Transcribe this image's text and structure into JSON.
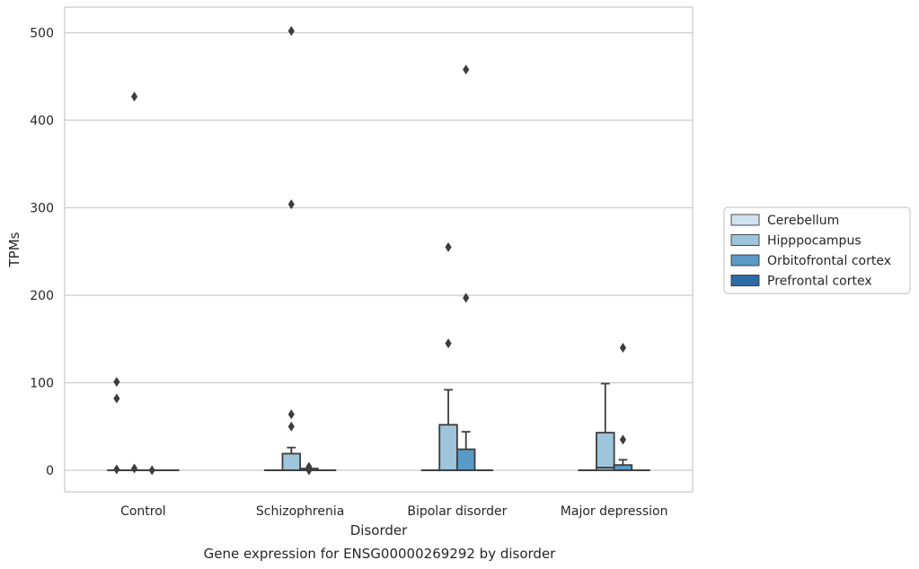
{
  "chart_data": {
    "type": "box",
    "title": "Gene expression for ENSG00000269292 by disorder",
    "xlabel": "Disorder",
    "ylabel": "TPMs",
    "ylim": [
      -25,
      528
    ],
    "yticks": [
      0,
      100,
      200,
      300,
      400,
      500
    ],
    "grid": "horizontal",
    "legend_position": "right",
    "categories": [
      "Control",
      "Schizophrenia",
      "Bipolar disorder",
      "Major depression"
    ],
    "series": [
      {
        "name": "Cerebellum",
        "color": "#d1e1ee",
        "boxes": [
          {
            "q1": 0,
            "median": 0,
            "q3": 0,
            "whisker_low": 0,
            "whisker_high": 0,
            "outliers": [
              101,
              82,
              1
            ]
          },
          {
            "q1": 0,
            "median": 0,
            "q3": 0,
            "whisker_low": 0,
            "whisker_high": 0,
            "outliers": []
          },
          {
            "q1": 0,
            "median": 0,
            "q3": 0,
            "whisker_low": 0,
            "whisker_high": 0,
            "outliers": []
          },
          {
            "q1": 0,
            "median": 0,
            "q3": 0,
            "whisker_low": 0,
            "whisker_high": 0,
            "outliers": []
          }
        ]
      },
      {
        "name": "Hipppocampus",
        "color": "#9fc5dc",
        "boxes": [
          {
            "q1": 0,
            "median": 0,
            "q3": 0,
            "whisker_low": 0,
            "whisker_high": 0,
            "outliers": [
              427,
              2
            ]
          },
          {
            "q1": 0,
            "median": 0,
            "q3": 19,
            "whisker_low": 0,
            "whisker_high": 26,
            "outliers": [
              502,
              304,
              64,
              50
            ]
          },
          {
            "q1": 0,
            "median": 0,
            "q3": 52,
            "whisker_low": 0,
            "whisker_high": 92,
            "outliers": [
              255,
              145
            ]
          },
          {
            "q1": 0,
            "median": 3,
            "q3": 43,
            "whisker_low": 0,
            "whisker_high": 99,
            "outliers": []
          }
        ]
      },
      {
        "name": "Orbitofrontal cortex",
        "color": "#5a9ac6",
        "boxes": [
          {
            "q1": 0,
            "median": 0,
            "q3": 0,
            "whisker_low": 0,
            "whisker_high": 0,
            "outliers": [
              0
            ]
          },
          {
            "q1": 0,
            "median": 0,
            "q3": 2,
            "whisker_low": 0,
            "whisker_high": 2,
            "outliers": [
              4,
              0
            ]
          },
          {
            "q1": 0,
            "median": 0,
            "q3": 24,
            "whisker_low": 0,
            "whisker_high": 44,
            "outliers": [
              458,
              197
            ]
          },
          {
            "q1": 0,
            "median": 0,
            "q3": 6,
            "whisker_low": 0,
            "whisker_high": 12,
            "outliers": [
              140,
              35
            ]
          }
        ]
      },
      {
        "name": "Prefrontal cortex",
        "color": "#2d6ba6",
        "boxes": [
          {
            "q1": 0,
            "median": 0,
            "q3": 0,
            "whisker_low": 0,
            "whisker_high": 0,
            "outliers": []
          },
          {
            "q1": 0,
            "median": 0,
            "q3": 0,
            "whisker_low": 0,
            "whisker_high": 0,
            "outliers": []
          },
          {
            "q1": 0,
            "median": 0,
            "q3": 0,
            "whisker_low": 0,
            "whisker_high": 0,
            "outliers": []
          },
          {
            "q1": 0,
            "median": 0,
            "q3": 0,
            "whisker_low": 0,
            "whisker_high": 0,
            "outliers": []
          }
        ]
      }
    ]
  }
}
